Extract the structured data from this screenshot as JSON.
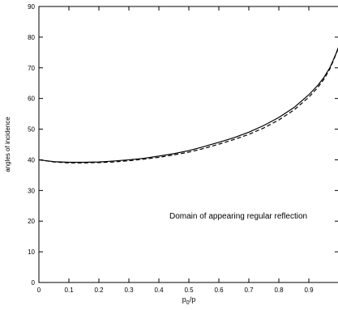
{
  "chart_data": {
    "type": "line",
    "title": "",
    "xlabel_main": "p",
    "xlabel_sub": "0",
    "xlabel_tail": "/p",
    "ylabel": "angles of incidence",
    "xlim": [
      0,
      1
    ],
    "ylim": [
      0,
      90
    ],
    "x_ticks": [
      0,
      0.1,
      0.2,
      0.3,
      0.4,
      0.5,
      0.6,
      0.7,
      0.8,
      0.9
    ],
    "x_tick_labels": [
      "0",
      "0.1",
      "0.2",
      "0.3",
      "0.4",
      "0.5",
      "0.6",
      "0.7",
      "0.8",
      "0.9"
    ],
    "y_ticks": [
      0,
      10,
      20,
      30,
      40,
      50,
      60,
      70,
      80,
      90
    ],
    "y_tick_labels": [
      "0",
      "10",
      "20",
      "30",
      "40",
      "50",
      "60",
      "70",
      "80",
      "90"
    ],
    "grid": false,
    "legend": "none",
    "annotations": [
      {
        "text": "Domain of appearing regular reflection",
        "x": 0.665,
        "y": 20.8
      }
    ],
    "series": [
      {
        "style": "solid",
        "x": [
          0,
          0.05,
          0.1,
          0.15,
          0.2,
          0.25,
          0.3,
          0.35,
          0.4,
          0.45,
          0.5,
          0.55,
          0.6,
          0.65,
          0.7,
          0.75,
          0.8,
          0.85,
          0.9,
          0.93,
          0.95,
          0.97,
          0.98,
          0.99,
          1.0
        ],
        "y": [
          40.0,
          39.4,
          39.2,
          39.2,
          39.3,
          39.6,
          40.0,
          40.5,
          41.2,
          42.0,
          43.0,
          44.3,
          45.7,
          47.2,
          49.0,
          51.2,
          53.8,
          57.0,
          61.2,
          64.3,
          66.8,
          70.0,
          72.2,
          74.5,
          77.0
        ]
      },
      {
        "style": "dashed",
        "x": [
          0,
          0.05,
          0.1,
          0.15,
          0.2,
          0.25,
          0.3,
          0.35,
          0.4,
          0.45,
          0.5,
          0.55,
          0.6,
          0.65,
          0.7,
          0.75,
          0.8,
          0.85,
          0.9,
          0.93,
          0.95,
          0.97,
          0.98,
          0.99,
          1.0
        ],
        "y": [
          40.0,
          39.3,
          39.0,
          39.0,
          39.1,
          39.3,
          39.7,
          40.2,
          40.8,
          41.6,
          42.5,
          43.7,
          45.1,
          46.6,
          48.3,
          50.4,
          53.0,
          56.2,
          60.4,
          63.6,
          66.2,
          69.6,
          71.9,
          74.3,
          76.8
        ]
      }
    ]
  }
}
